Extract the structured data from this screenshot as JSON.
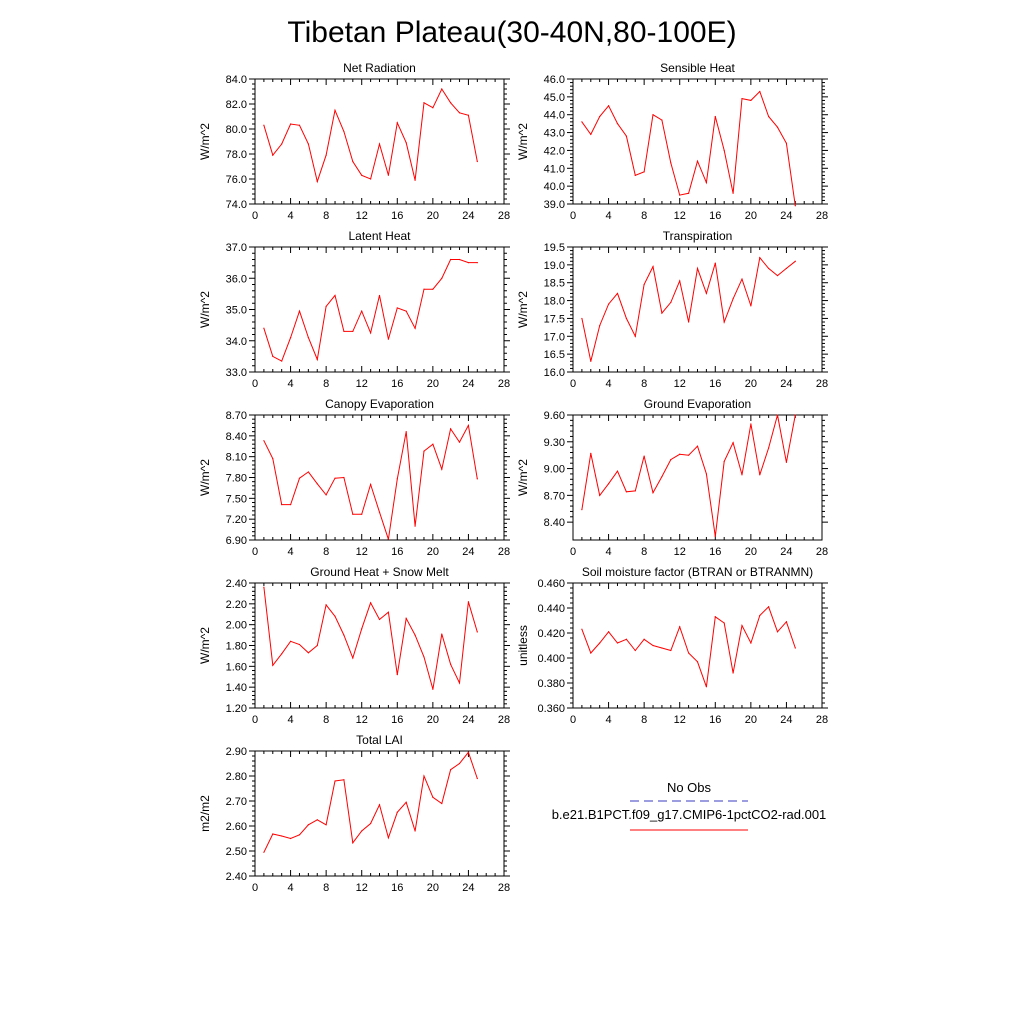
{
  "figure": {
    "title": "Tibetan Plateau(30-40N,80-100E)"
  },
  "chart_data": [
    {
      "type": "line",
      "title": "Net Radiation",
      "ylabel": "W/m^2",
      "xlim": [
        0,
        28
      ],
      "ylim": [
        74,
        84
      ],
      "xticks": [
        "0",
        "4",
        "8",
        "12",
        "16",
        "20",
        "24",
        "28"
      ],
      "yticks": [
        "74.0",
        "76.0",
        "78.0",
        "80.0",
        "82.0",
        "84.0"
      ],
      "x": [
        1,
        2,
        3,
        4,
        5,
        6,
        7,
        8,
        9,
        10,
        11,
        12,
        13,
        14,
        15,
        16,
        17,
        18,
        19,
        20,
        21,
        22,
        23,
        24,
        25
      ],
      "series": [
        {
          "values": [
            80.3,
            77.9,
            78.8,
            80.4,
            80.3,
            78.8,
            75.8,
            77.9,
            81.5,
            79.8,
            77.4,
            76.3,
            76.0,
            78.8,
            76.3,
            80.5,
            78.9,
            75.9,
            82.1,
            81.7,
            83.2,
            82.1,
            81.3,
            81.1,
            77.4
          ]
        }
      ]
    },
    {
      "type": "line",
      "title": "Sensible Heat",
      "ylabel": "W/m^2",
      "xlim": [
        0,
        28
      ],
      "ylim": [
        39,
        46
      ],
      "xticks": [
        "0",
        "4",
        "8",
        "12",
        "16",
        "20",
        "24",
        "28"
      ],
      "yticks": [
        "39.0",
        "40.0",
        "41.0",
        "42.0",
        "43.0",
        "44.0",
        "45.0",
        "46.0"
      ],
      "x": [
        1,
        2,
        3,
        4,
        5,
        6,
        7,
        8,
        9,
        10,
        11,
        12,
        13,
        14,
        15,
        16,
        17,
        18,
        19,
        20,
        21,
        22,
        23,
        24,
        25
      ],
      "series": [
        {
          "values": [
            43.6,
            42.9,
            43.9,
            44.5,
            43.5,
            42.8,
            40.6,
            40.8,
            44.0,
            43.7,
            41.3,
            39.5,
            39.6,
            41.4,
            40.2,
            43.9,
            42.0,
            39.6,
            44.9,
            44.8,
            45.3,
            43.9,
            43.3,
            42.4,
            38.9
          ]
        }
      ]
    },
    {
      "type": "line",
      "title": "Latent Heat",
      "ylabel": "W/m^2",
      "xlim": [
        0,
        28
      ],
      "ylim": [
        33,
        37
      ],
      "xticks": [
        "0",
        "4",
        "8",
        "12",
        "16",
        "20",
        "24",
        "28"
      ],
      "yticks": [
        "33.0",
        "34.0",
        "35.0",
        "36.0",
        "37.0"
      ],
      "x": [
        1,
        2,
        3,
        4,
        5,
        6,
        7,
        8,
        9,
        10,
        11,
        12,
        13,
        14,
        15,
        16,
        17,
        18,
        19,
        20,
        21,
        22,
        23,
        24,
        25
      ],
      "series": [
        {
          "values": [
            34.4,
            33.5,
            33.35,
            34.1,
            34.95,
            34.1,
            33.4,
            35.1,
            35.45,
            34.3,
            34.3,
            34.95,
            34.25,
            35.45,
            34.05,
            35.05,
            34.95,
            34.4,
            35.65,
            35.65,
            36.0,
            36.6,
            36.6,
            36.5,
            36.5
          ]
        }
      ]
    },
    {
      "type": "line",
      "title": "Transpiration",
      "ylabel": "W/m^2",
      "xlim": [
        0,
        28
      ],
      "ylim": [
        16,
        19.5
      ],
      "xticks": [
        "0",
        "4",
        "8",
        "12",
        "16",
        "20",
        "24",
        "28"
      ],
      "yticks": [
        "16.0",
        "16.5",
        "17.0",
        "17.5",
        "18.0",
        "18.5",
        "19.0",
        "19.5"
      ],
      "x": [
        1,
        2,
        3,
        4,
        5,
        6,
        7,
        8,
        9,
        10,
        11,
        12,
        13,
        14,
        15,
        16,
        17,
        18,
        19,
        20,
        21,
        22,
        23,
        24,
        25
      ],
      "series": [
        {
          "values": [
            17.5,
            16.3,
            17.3,
            17.9,
            18.2,
            17.5,
            17.0,
            18.45,
            18.95,
            17.65,
            17.95,
            18.55,
            17.4,
            18.9,
            18.2,
            19.05,
            17.4,
            18.05,
            18.6,
            17.85,
            19.2,
            18.9,
            18.7,
            18.9,
            19.1
          ]
        }
      ]
    },
    {
      "type": "line",
      "title": "Canopy Evaporation",
      "ylabel": "W/m^2",
      "xlim": [
        0,
        28
      ],
      "ylim": [
        6.9,
        8.7
      ],
      "xticks": [
        "0",
        "4",
        "8",
        "12",
        "16",
        "20",
        "24",
        "28"
      ],
      "yticks": [
        "6.90",
        "7.20",
        "7.50",
        "7.80",
        "8.10",
        "8.40",
        "8.70"
      ],
      "x": [
        1,
        2,
        3,
        4,
        5,
        6,
        7,
        8,
        9,
        10,
        11,
        12,
        13,
        14,
        15,
        16,
        17,
        18,
        19,
        20,
        21,
        22,
        23,
        24,
        25
      ],
      "series": [
        {
          "values": [
            8.33,
            8.07,
            7.41,
            7.41,
            7.79,
            7.88,
            7.71,
            7.55,
            7.79,
            7.8,
            7.27,
            7.27,
            7.7,
            7.3,
            6.91,
            7.78,
            8.46,
            7.1,
            8.18,
            8.28,
            7.92,
            8.5,
            8.31,
            8.55,
            7.78
          ]
        }
      ]
    },
    {
      "type": "line",
      "title": "Ground Evaporation",
      "ylabel": "W/m^2",
      "xlim": [
        0,
        28
      ],
      "ylim": [
        8.2,
        9.6
      ],
      "xticks": [
        "0",
        "4",
        "8",
        "12",
        "16",
        "20",
        "24",
        "28"
      ],
      "yticks": [
        "8.40",
        "8.70",
        "9.00",
        "9.30",
        "9.60"
      ],
      "x": [
        1,
        2,
        3,
        4,
        5,
        6,
        7,
        8,
        9,
        10,
        11,
        12,
        13,
        14,
        15,
        16,
        17,
        18,
        19,
        20,
        21,
        22,
        23,
        24,
        25
      ],
      "series": [
        {
          "values": [
            8.54,
            9.17,
            8.7,
            8.83,
            8.97,
            8.74,
            8.75,
            9.14,
            8.73,
            8.91,
            9.1,
            9.16,
            9.15,
            9.25,
            8.94,
            8.24,
            9.08,
            9.29,
            8.93,
            9.5,
            8.93,
            9.23,
            9.6,
            9.07,
            9.6
          ]
        }
      ]
    },
    {
      "type": "line",
      "title": "Ground Heat + Snow Melt",
      "ylabel": "W/m^2",
      "xlim": [
        0,
        28
      ],
      "ylim": [
        1.2,
        2.4
      ],
      "xticks": [
        "0",
        "4",
        "8",
        "12",
        "16",
        "20",
        "24",
        "28"
      ],
      "yticks": [
        "1.20",
        "1.40",
        "1.60",
        "1.80",
        "2.00",
        "2.20",
        "2.40"
      ],
      "x": [
        1,
        2,
        3,
        4,
        5,
        6,
        7,
        8,
        9,
        10,
        11,
        12,
        13,
        14,
        15,
        16,
        17,
        18,
        19,
        20,
        21,
        22,
        23,
        24,
        25
      ],
      "series": [
        {
          "values": [
            2.36,
            1.61,
            1.72,
            1.84,
            1.81,
            1.73,
            1.8,
            2.19,
            2.08,
            1.9,
            1.68,
            1.96,
            2.21,
            2.05,
            2.12,
            1.52,
            2.06,
            1.9,
            1.69,
            1.38,
            1.91,
            1.62,
            1.44,
            2.22,
            1.93
          ]
        }
      ]
    },
    {
      "type": "line",
      "title": "Soil moisture factor (BTRAN or BTRANMN)",
      "ylabel": "unitless",
      "xlim": [
        0,
        28
      ],
      "ylim": [
        0.36,
        0.46
      ],
      "xticks": [
        "0",
        "4",
        "8",
        "12",
        "16",
        "20",
        "24",
        "28"
      ],
      "yticks": [
        "0.360",
        "0.380",
        "0.400",
        "0.420",
        "0.440",
        "0.460"
      ],
      "x": [
        1,
        2,
        3,
        4,
        5,
        6,
        7,
        8,
        9,
        10,
        11,
        12,
        13,
        14,
        15,
        16,
        17,
        18,
        19,
        20,
        21,
        22,
        23,
        24,
        25
      ],
      "series": [
        {
          "values": [
            0.423,
            0.404,
            0.412,
            0.421,
            0.412,
            0.415,
            0.406,
            0.415,
            0.41,
            0.408,
            0.406,
            0.425,
            0.404,
            0.397,
            0.377,
            0.433,
            0.428,
            0.388,
            0.426,
            0.412,
            0.434,
            0.441,
            0.421,
            0.429,
            0.408
          ]
        }
      ]
    },
    {
      "type": "line",
      "title": "Total LAI",
      "ylabel": "m2/m2",
      "xlim": [
        0,
        28
      ],
      "ylim": [
        2.4,
        2.9
      ],
      "xticks": [
        "0",
        "4",
        "8",
        "12",
        "16",
        "20",
        "24",
        "28"
      ],
      "yticks": [
        "2.40",
        "2.50",
        "2.60",
        "2.70",
        "2.80",
        "2.90"
      ],
      "x": [
        1,
        2,
        3,
        4,
        5,
        6,
        7,
        8,
        9,
        10,
        11,
        12,
        13,
        14,
        15,
        16,
        17,
        18,
        19,
        20,
        21,
        22,
        23,
        24,
        25
      ],
      "series": [
        {
          "values": [
            2.495,
            2.568,
            2.56,
            2.55,
            2.565,
            2.605,
            2.625,
            2.605,
            2.78,
            2.785,
            2.533,
            2.58,
            2.61,
            2.685,
            2.553,
            2.655,
            2.695,
            2.58,
            2.8,
            2.715,
            2.69,
            2.825,
            2.85,
            2.895,
            2.79
          ]
        }
      ]
    }
  ],
  "legend": {
    "items": [
      {
        "label": "No Obs",
        "color": "#3a3ac0",
        "dash": "dashed"
      },
      {
        "label": "b.e21.B1PCT.f09_g17.CMIP6-1pctCO2-rad.001",
        "color": "#ff0000",
        "dash": "solid"
      }
    ]
  },
  "colors": {
    "series_line": "#ff0000",
    "axes": "#000000"
  }
}
